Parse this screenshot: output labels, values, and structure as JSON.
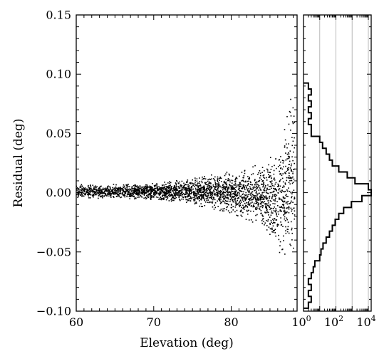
{
  "chart_data": [
    {
      "type": "scatter",
      "xlabel": "Elevation (deg)",
      "ylabel": "Residual (deg)",
      "xlim": [
        60,
        88.5
      ],
      "ylim": [
        -0.1,
        0.15
      ],
      "x_ticks": [
        60,
        70,
        80
      ],
      "x_tick_labels": [
        "60",
        "70",
        "80"
      ],
      "y_ticks": [
        -0.1,
        -0.05,
        0.0,
        0.05,
        0.1,
        0.15
      ],
      "y_tick_labels": [
        "−0.10",
        "−0.05",
        "0.00",
        "0.05",
        "0.10",
        "0.15"
      ],
      "marker_color": "#000000",
      "envelope": {
        "elevation": [
          60,
          65,
          70,
          75,
          80,
          84,
          86,
          88
        ],
        "upper": [
          0.007,
          0.007,
          0.008,
          0.012,
          0.018,
          0.025,
          0.035,
          0.09
        ],
        "lower": [
          -0.005,
          -0.005,
          -0.006,
          -0.01,
          -0.018,
          -0.03,
          -0.05,
          -0.065
        ]
      },
      "grid": false
    },
    {
      "type": "histogram",
      "orientation": "horizontal",
      "x_scale": "log",
      "xlim": [
        1,
        15000
      ],
      "ylim": [
        -0.1,
        0.15
      ],
      "x_ticks": [
        1,
        100,
        10000
      ],
      "x_tick_labels": [
        {
          "base": "10",
          "exp": "0"
        },
        {
          "base": "10",
          "exp": "2"
        },
        {
          "base": "10",
          "exp": "4"
        }
      ],
      "vertical_gridlines": [
        10,
        100,
        1000,
        10000
      ],
      "bin_width": 0.005,
      "bins": [
        {
          "y": -0.095,
          "count": 2
        },
        {
          "y": -0.09,
          "count": 3
        },
        {
          "y": -0.085,
          "count": 2
        },
        {
          "y": -0.08,
          "count": 3
        },
        {
          "y": -0.075,
          "count": 2
        },
        {
          "y": -0.07,
          "count": 3
        },
        {
          "y": -0.065,
          "count": 4
        },
        {
          "y": -0.06,
          "count": 5
        },
        {
          "y": -0.055,
          "count": 10
        },
        {
          "y": -0.05,
          "count": 12
        },
        {
          "y": -0.045,
          "count": 16
        },
        {
          "y": -0.04,
          "count": 25
        },
        {
          "y": -0.035,
          "count": 40
        },
        {
          "y": -0.03,
          "count": 60
        },
        {
          "y": -0.025,
          "count": 90
        },
        {
          "y": -0.02,
          "count": 150
        },
        {
          "y": -0.015,
          "count": 300
        },
        {
          "y": -0.01,
          "count": 900
        },
        {
          "y": -0.005,
          "count": 4000
        },
        {
          "y": 0.0,
          "count": 15000
        },
        {
          "y": 0.005,
          "count": 10000
        },
        {
          "y": 0.01,
          "count": 1500
        },
        {
          "y": 0.015,
          "count": 500
        },
        {
          "y": 0.02,
          "count": 150
        },
        {
          "y": 0.025,
          "count": 60
        },
        {
          "y": 0.03,
          "count": 40
        },
        {
          "y": 0.035,
          "count": 25
        },
        {
          "y": 0.04,
          "count": 15
        },
        {
          "y": 0.045,
          "count": 10
        },
        {
          "y": 0.05,
          "count": 3
        },
        {
          "y": 0.055,
          "count": 3
        },
        {
          "y": 0.06,
          "count": 2
        },
        {
          "y": 0.065,
          "count": 3
        },
        {
          "y": 0.07,
          "count": 2
        },
        {
          "y": 0.075,
          "count": 3
        },
        {
          "y": 0.08,
          "count": 2
        },
        {
          "y": 0.085,
          "count": 3
        },
        {
          "y": 0.09,
          "count": 2
        }
      ],
      "grid": true
    }
  ]
}
